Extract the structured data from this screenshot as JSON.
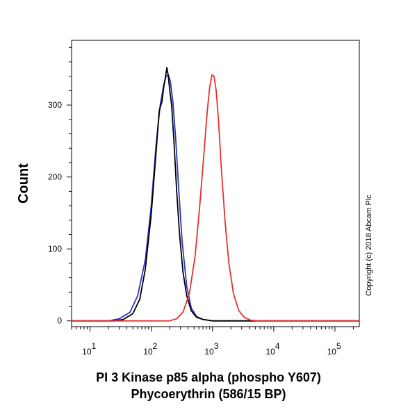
{
  "chart_data": {
    "type": "line",
    "title": "",
    "xlabel_line1": "PI 3 Kinase p85 alpha (phospho Y607)",
    "xlabel_line2": "Phycoerythrin (586/15 BP)",
    "ylabel": "Count",
    "x_scale": "log",
    "xlim": [
      5,
      250000
    ],
    "ylim": [
      -8,
      390
    ],
    "grid": false,
    "legend": "none",
    "x_ticks": [
      {
        "base": "10",
        "exp": "1",
        "value": 10
      },
      {
        "base": "10",
        "exp": "2",
        "value": 100
      },
      {
        "base": "10",
        "exp": "3",
        "value": 1000
      },
      {
        "base": "10",
        "exp": "4",
        "value": 10000
      },
      {
        "base": "10",
        "exp": "5",
        "value": 100000
      }
    ],
    "y_ticks": [
      {
        "label": "0",
        "value": 0
      },
      {
        "label": "100",
        "value": 100
      },
      {
        "label": "200",
        "value": 200
      },
      {
        "label": "300",
        "value": 300
      }
    ],
    "series": [
      {
        "color": "#2b35c8",
        "x": [
          5,
          20,
          30,
          45,
          60,
          80,
          100,
          120,
          140,
          160,
          175,
          190,
          205,
          225,
          250,
          280,
          320,
          380,
          450,
          550,
          700,
          1000,
          250000
        ],
        "y": [
          0,
          0,
          3,
          12,
          35,
          85,
          160,
          245,
          300,
          328,
          340,
          342,
          333,
          305,
          255,
          185,
          110,
          48,
          18,
          6,
          2,
          0,
          0
        ]
      },
      {
        "color": "#000000",
        "x": [
          5,
          25,
          35,
          50,
          65,
          80,
          100,
          120,
          135,
          150,
          160,
          170,
          180,
          190,
          200,
          215,
          235,
          260,
          290,
          330,
          380,
          450,
          550,
          700,
          1000,
          250000
        ],
        "y": [
          0,
          0,
          2,
          10,
          30,
          72,
          148,
          235,
          292,
          305,
          325,
          338,
          352,
          340,
          322,
          300,
          250,
          180,
          120,
          68,
          35,
          14,
          5,
          2,
          0,
          0
        ]
      },
      {
        "color": "#e8312f",
        "x": [
          5,
          200,
          260,
          330,
          420,
          520,
          620,
          720,
          820,
          900,
          980,
          1060,
          1150,
          1250,
          1400,
          1600,
          1850,
          2200,
          2700,
          3300,
          4200,
          5500,
          250000
        ],
        "y": [
          0,
          0,
          3,
          12,
          38,
          90,
          160,
          230,
          290,
          325,
          342,
          340,
          320,
          280,
          210,
          140,
          80,
          38,
          14,
          5,
          1,
          0,
          0
        ]
      }
    ]
  },
  "copyright": "Copyright (c) 2018 Abcam Plc"
}
